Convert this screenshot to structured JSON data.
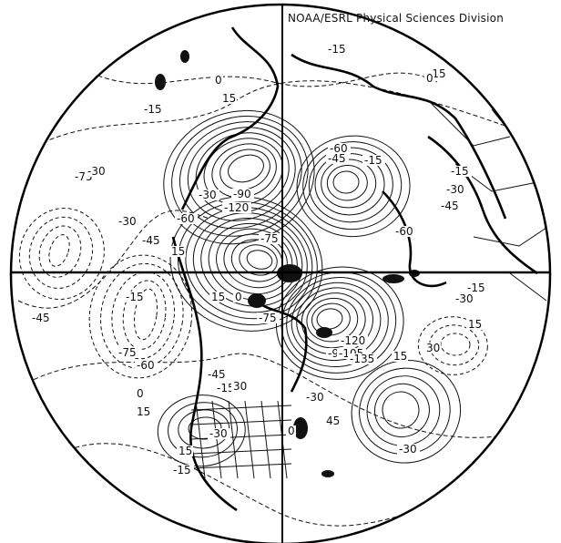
{
  "map": {
    "credit": "NOAA/ESRL Physical Sciences Division",
    "projection": "north polar stereographic",
    "contour_labels": [
      "-15",
      "0",
      "15",
      "-15",
      "-30",
      "-45",
      "15",
      "-15",
      "-30",
      "-45",
      "-60",
      "-75",
      "-90",
      "-120",
      "-60",
      "-75",
      "-45",
      "-30",
      "-15",
      "0",
      "15",
      "0",
      "-15",
      "-30",
      "-45",
      "-60",
      "-75",
      "-90",
      "-105",
      "-120",
      "-135",
      "-75",
      "-60",
      "-45",
      "-30",
      "-15",
      "0",
      "15",
      "30",
      "45",
      "15",
      "-15",
      "-30",
      "15",
      "30",
      "-30",
      "15",
      "-15",
      "0",
      "-15",
      "-30"
    ]
  }
}
